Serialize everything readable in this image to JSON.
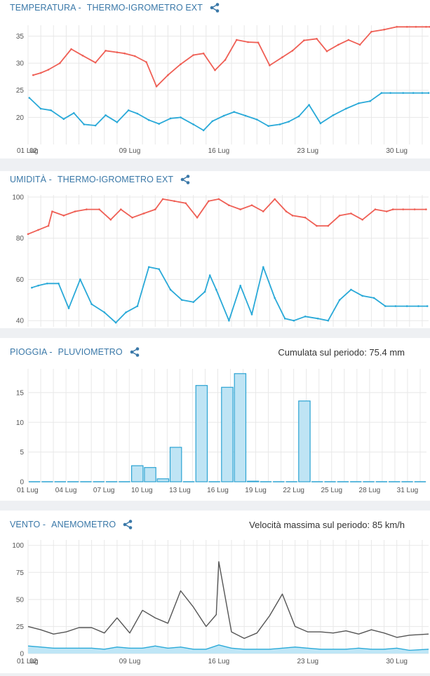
{
  "panels": [
    {
      "id": "temperatura",
      "title": "TEMPERATURA -",
      "sensor": "THERMO-IGROMETRO EXT",
      "summary": "",
      "share_icon": "share-icon"
    },
    {
      "id": "umidita",
      "title": "UMIDITÀ -",
      "sensor": "THERMO-IGROMETRO EXT",
      "summary": "",
      "share_icon": "share-icon"
    },
    {
      "id": "pioggia",
      "title": "PIOGGIA -",
      "sensor": "PLUVIOMETRO",
      "summary": "Cumulata sul periodo: 75.4 mm",
      "share_icon": "share-icon"
    },
    {
      "id": "vento",
      "title": "VENTO -",
      "sensor": "ANEMOMETRO",
      "summary": "Velocità massima sul periodo: 85 km/h",
      "share_icon": "share-icon"
    }
  ],
  "colors": {
    "header": "#3a78a8",
    "red": "#ef5f55",
    "blue": "#29a9d8",
    "bar_fill": "#bfe4f4",
    "bar_stroke": "#2ba3d3",
    "wind_line": "#555555",
    "wind_area": "#bfe6f6",
    "grid": "#e8e8e8"
  },
  "chart_data": [
    {
      "type": "line",
      "title": "TEMPERATURA - THERMO-IGROMETRO EXT",
      "ylim": [
        15,
        37
      ],
      "yticks": [
        20,
        25,
        30,
        35
      ],
      "xlim": [
        0,
        31.5
      ],
      "xticks": [
        {
          "x": 0,
          "label": "01 Lug"
        },
        {
          "x": 0.35,
          "label": "02"
        },
        {
          "x": 8,
          "label": "09 Lug"
        },
        {
          "x": 15,
          "label": "16 Lug"
        },
        {
          "x": 22,
          "label": "23 Lug"
        },
        {
          "x": 29,
          "label": "30 Lug"
        }
      ],
      "series": [
        {
          "color": "red",
          "x": [
            0.4,
            1.0,
            1.6,
            2.5,
            3.4,
            4.3,
            5.3,
            6.1,
            7.0,
            7.6,
            8.4,
            9.3,
            10.1,
            11.0,
            12.0,
            13.0,
            13.8,
            14.7,
            15.5,
            16.4,
            17.3,
            18.1,
            19.0,
            20.0,
            20.8,
            21.7,
            22.7,
            23.5,
            24.4,
            25.2,
            26.1,
            27.0,
            28.0,
            29.0,
            29.8,
            30.5,
            31.3,
            31.6
          ],
          "y": [
            27.8,
            28.2,
            28.8,
            30.0,
            32.6,
            31.4,
            30.1,
            32.3,
            32.0,
            31.8,
            31.3,
            30.2,
            25.7,
            27.8,
            29.8,
            31.5,
            31.8,
            28.7,
            30.6,
            34.3,
            33.9,
            33.8,
            29.6,
            31.1,
            32.3,
            34.2,
            34.5,
            32.2,
            33.4,
            34.3,
            33.4,
            35.8,
            36.2,
            36.7,
            36.7,
            36.7,
            36.7,
            36.7
          ]
        },
        {
          "color": "blue",
          "x": [
            0.1,
            1.0,
            1.8,
            2.8,
            3.6,
            4.4,
            5.3,
            6.1,
            7.0,
            7.9,
            8.6,
            9.5,
            10.3,
            11.2,
            12.0,
            13.0,
            13.8,
            14.5,
            15.4,
            16.2,
            17.1,
            18.0,
            18.9,
            19.8,
            20.5,
            21.3,
            22.1,
            23.0,
            24.0,
            25.0,
            26.0,
            26.9,
            27.8,
            28.5,
            29.5,
            30.3,
            31.0,
            31.5
          ],
          "y": [
            23.6,
            21.6,
            21.3,
            19.7,
            20.8,
            18.7,
            18.5,
            20.4,
            19.1,
            21.3,
            20.7,
            19.5,
            18.8,
            19.8,
            20.0,
            18.7,
            17.6,
            19.3,
            20.3,
            21.0,
            20.3,
            19.6,
            18.4,
            18.7,
            19.2,
            20.2,
            22.3,
            18.9,
            20.4,
            21.6,
            22.6,
            23.0,
            24.5,
            24.5,
            24.5,
            24.5,
            24.5,
            24.5
          ]
        }
      ]
    },
    {
      "type": "line",
      "title": "UMIDITÀ - THERMO-IGROMETRO EXT",
      "ylim": [
        37,
        101
      ],
      "yticks": [
        40,
        60,
        80,
        100
      ],
      "xlim": [
        0,
        31.5
      ],
      "xticks": [
        {
          "x": 0,
          "label": "01 Lug"
        },
        {
          "x": 0.35,
          "label": "02"
        },
        {
          "x": 8,
          "label": "09 Lug"
        },
        {
          "x": 15,
          "label": "16 Lug"
        },
        {
          "x": 22,
          "label": "23 Lug"
        },
        {
          "x": 29,
          "label": "30 Lug"
        }
      ],
      "series": [
        {
          "color": "red",
          "x": [
            0.0,
            0.8,
            1.6,
            1.9,
            2.8,
            3.7,
            4.6,
            5.6,
            6.5,
            7.3,
            8.2,
            9.1,
            10.0,
            10.6,
            11.5,
            12.4,
            13.3,
            14.2,
            15.0,
            15.8,
            16.7,
            17.6,
            18.5,
            19.4,
            20.3,
            20.8,
            21.8,
            22.7,
            23.6,
            24.5,
            25.4,
            26.3,
            27.3,
            28.2,
            28.7,
            29.5,
            30.4,
            31.3
          ],
          "y": [
            82,
            84,
            86,
            93,
            91,
            93,
            94,
            94,
            89,
            94,
            90,
            92,
            94,
            99,
            98,
            97,
            90,
            98,
            99,
            96,
            94,
            96,
            93,
            99,
            93,
            91,
            90,
            86,
            86,
            91,
            92,
            89,
            94,
            93,
            94,
            94,
            94,
            94
          ]
        },
        {
          "color": "blue",
          "x": [
            0.3,
            0.8,
            1.5,
            2.4,
            3.2,
            4.1,
            5.0,
            6.0,
            6.9,
            7.7,
            8.6,
            9.5,
            10.3,
            11.2,
            12.1,
            13.0,
            13.9,
            14.3,
            14.8,
            15.8,
            16.7,
            17.6,
            18.5,
            19.4,
            20.2,
            20.9,
            21.8,
            22.8,
            23.6,
            24.5,
            25.4,
            26.3,
            27.2,
            28.1,
            28.9,
            29.8,
            30.7,
            31.4
          ],
          "y": [
            56,
            57,
            58,
            58,
            46,
            60,
            48,
            44,
            39,
            44,
            47,
            66,
            65,
            55,
            50,
            49,
            54,
            62,
            55,
            40,
            57,
            43,
            66,
            51,
            41,
            40,
            42,
            41,
            40,
            50,
            55,
            52,
            51,
            47,
            47,
            47,
            47,
            47
          ]
        }
      ]
    },
    {
      "type": "bar",
      "title": "PIOGGIA - PLUVIOMETRO",
      "ylim": [
        0,
        19
      ],
      "yticks": [
        0,
        5,
        10,
        15
      ],
      "xlim": [
        0,
        31.5
      ],
      "xticks": [
        {
          "x": 0,
          "label": "01 Lug"
        },
        {
          "x": 3,
          "label": "04 Lug"
        },
        {
          "x": 6,
          "label": "07 Lug"
        },
        {
          "x": 9,
          "label": "10 Lug"
        },
        {
          "x": 12,
          "label": "13 Lug"
        },
        {
          "x": 15,
          "label": "16 Lug"
        },
        {
          "x": 18,
          "label": "19 Lug"
        },
        {
          "x": 21,
          "label": "22 Lug"
        },
        {
          "x": 24,
          "label": "25 Lug"
        },
        {
          "x": 27,
          "label": "28 Lug"
        },
        {
          "x": 30,
          "label": "31 Lug"
        }
      ],
      "values": [
        0,
        0,
        0,
        0,
        0,
        0,
        0,
        0,
        2.7,
        2.4,
        0.5,
        5.8,
        0,
        16.2,
        0,
        15.9,
        18.2,
        0.1,
        0,
        0,
        0,
        13.6,
        0,
        0,
        0,
        0,
        0,
        0,
        0,
        0,
        0
      ]
    },
    {
      "type": "area",
      "title": "VENTO - ANEMOMETRO",
      "ylim": [
        0,
        105
      ],
      "yticks": [
        0,
        25,
        50,
        75,
        100
      ],
      "xlim": [
        0,
        31.5
      ],
      "xticks": [
        {
          "x": 0,
          "label": "01 Lug"
        },
        {
          "x": 0.35,
          "label": "02"
        },
        {
          "x": 8,
          "label": "09 Lug"
        },
        {
          "x": 15,
          "label": "16 Lug"
        },
        {
          "x": 22,
          "label": "23 Lug"
        },
        {
          "x": 29,
          "label": "30 Lug"
        }
      ],
      "series": [
        {
          "color": "wind_line",
          "name": "",
          "x": [
            0.0,
            1.0,
            2.0,
            3.0,
            4.0,
            5.0,
            6.0,
            7.0,
            8.0,
            9.0,
            10.0,
            11.0,
            12.0,
            13.0,
            14.0,
            14.8,
            15.0,
            16.0,
            17.0,
            18.0,
            19.0,
            20.0,
            21.0,
            22.0,
            23.0,
            24.0,
            25.0,
            26.0,
            27.0,
            28.0,
            29.0,
            30.0,
            31.5
          ],
          "y": [
            25,
            22,
            18,
            20,
            24,
            24,
            19,
            33,
            19,
            40,
            33,
            28,
            58,
            43,
            25,
            36,
            85,
            20,
            14,
            19,
            35,
            55,
            25,
            20,
            20,
            19,
            21,
            18,
            22,
            19,
            15,
            17,
            18
          ]
        },
        {
          "color": "wind_area",
          "name": "",
          "x": [
            0.0,
            1.0,
            2.0,
            3.0,
            4.0,
            5.0,
            6.0,
            7.0,
            8.0,
            9.0,
            10.0,
            11.0,
            12.0,
            13.0,
            14.0,
            15.0,
            16.0,
            17.0,
            18.0,
            19.0,
            20.0,
            21.0,
            22.0,
            23.0,
            24.0,
            25.0,
            26.0,
            27.0,
            28.0,
            29.0,
            30.0,
            31.5
          ],
          "y": [
            7,
            6,
            5,
            5,
            5,
            5,
            4,
            6,
            5,
            5,
            7,
            5,
            6,
            4,
            4,
            8,
            5,
            4,
            4,
            4,
            5,
            6,
            5,
            4,
            4,
            4,
            5,
            4,
            4,
            5,
            3,
            4
          ]
        }
      ]
    }
  ]
}
